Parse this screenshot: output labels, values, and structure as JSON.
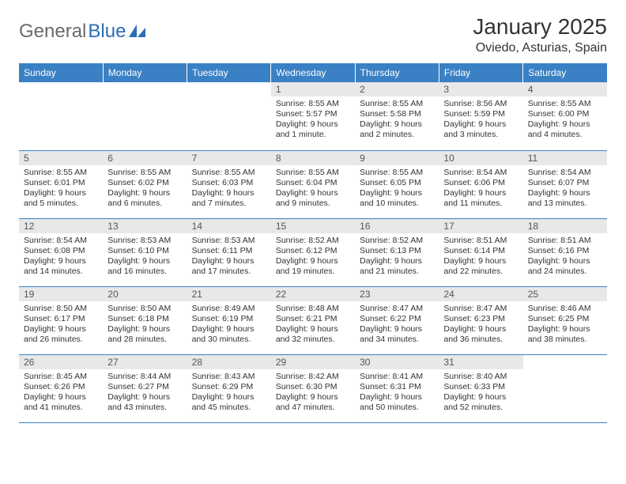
{
  "brand": {
    "name_a": "General",
    "name_b": "Blue"
  },
  "title": "January 2025",
  "subtitle": "Oviedo, Asturias, Spain",
  "colors": {
    "header_bg": "#3a80c4",
    "header_text": "#ffffff",
    "daynum_bg": "#e8e8e8",
    "daynum_text": "#555555",
    "body_text": "#333333",
    "rule": "#3a80c4",
    "logo_gray": "#6b6b6b",
    "logo_blue": "#2a6db5",
    "background": "#ffffff"
  },
  "weekdays": [
    "Sunday",
    "Monday",
    "Tuesday",
    "Wednesday",
    "Thursday",
    "Friday",
    "Saturday"
  ],
  "grid": [
    [
      null,
      null,
      null,
      {
        "n": "1",
        "sr": "Sunrise: 8:55 AM",
        "ss": "Sunset: 5:57 PM",
        "dl1": "Daylight: 9 hours",
        "dl2": "and 1 minute."
      },
      {
        "n": "2",
        "sr": "Sunrise: 8:55 AM",
        "ss": "Sunset: 5:58 PM",
        "dl1": "Daylight: 9 hours",
        "dl2": "and 2 minutes."
      },
      {
        "n": "3",
        "sr": "Sunrise: 8:56 AM",
        "ss": "Sunset: 5:59 PM",
        "dl1": "Daylight: 9 hours",
        "dl2": "and 3 minutes."
      },
      {
        "n": "4",
        "sr": "Sunrise: 8:55 AM",
        "ss": "Sunset: 6:00 PM",
        "dl1": "Daylight: 9 hours",
        "dl2": "and 4 minutes."
      }
    ],
    [
      {
        "n": "5",
        "sr": "Sunrise: 8:55 AM",
        "ss": "Sunset: 6:01 PM",
        "dl1": "Daylight: 9 hours",
        "dl2": "and 5 minutes."
      },
      {
        "n": "6",
        "sr": "Sunrise: 8:55 AM",
        "ss": "Sunset: 6:02 PM",
        "dl1": "Daylight: 9 hours",
        "dl2": "and 6 minutes."
      },
      {
        "n": "7",
        "sr": "Sunrise: 8:55 AM",
        "ss": "Sunset: 6:03 PM",
        "dl1": "Daylight: 9 hours",
        "dl2": "and 7 minutes."
      },
      {
        "n": "8",
        "sr": "Sunrise: 8:55 AM",
        "ss": "Sunset: 6:04 PM",
        "dl1": "Daylight: 9 hours",
        "dl2": "and 9 minutes."
      },
      {
        "n": "9",
        "sr": "Sunrise: 8:55 AM",
        "ss": "Sunset: 6:05 PM",
        "dl1": "Daylight: 9 hours",
        "dl2": "and 10 minutes."
      },
      {
        "n": "10",
        "sr": "Sunrise: 8:54 AM",
        "ss": "Sunset: 6:06 PM",
        "dl1": "Daylight: 9 hours",
        "dl2": "and 11 minutes."
      },
      {
        "n": "11",
        "sr": "Sunrise: 8:54 AM",
        "ss": "Sunset: 6:07 PM",
        "dl1": "Daylight: 9 hours",
        "dl2": "and 13 minutes."
      }
    ],
    [
      {
        "n": "12",
        "sr": "Sunrise: 8:54 AM",
        "ss": "Sunset: 6:08 PM",
        "dl1": "Daylight: 9 hours",
        "dl2": "and 14 minutes."
      },
      {
        "n": "13",
        "sr": "Sunrise: 8:53 AM",
        "ss": "Sunset: 6:10 PM",
        "dl1": "Daylight: 9 hours",
        "dl2": "and 16 minutes."
      },
      {
        "n": "14",
        "sr": "Sunrise: 8:53 AM",
        "ss": "Sunset: 6:11 PM",
        "dl1": "Daylight: 9 hours",
        "dl2": "and 17 minutes."
      },
      {
        "n": "15",
        "sr": "Sunrise: 8:52 AM",
        "ss": "Sunset: 6:12 PM",
        "dl1": "Daylight: 9 hours",
        "dl2": "and 19 minutes."
      },
      {
        "n": "16",
        "sr": "Sunrise: 8:52 AM",
        "ss": "Sunset: 6:13 PM",
        "dl1": "Daylight: 9 hours",
        "dl2": "and 21 minutes."
      },
      {
        "n": "17",
        "sr": "Sunrise: 8:51 AM",
        "ss": "Sunset: 6:14 PM",
        "dl1": "Daylight: 9 hours",
        "dl2": "and 22 minutes."
      },
      {
        "n": "18",
        "sr": "Sunrise: 8:51 AM",
        "ss": "Sunset: 6:16 PM",
        "dl1": "Daylight: 9 hours",
        "dl2": "and 24 minutes."
      }
    ],
    [
      {
        "n": "19",
        "sr": "Sunrise: 8:50 AM",
        "ss": "Sunset: 6:17 PM",
        "dl1": "Daylight: 9 hours",
        "dl2": "and 26 minutes."
      },
      {
        "n": "20",
        "sr": "Sunrise: 8:50 AM",
        "ss": "Sunset: 6:18 PM",
        "dl1": "Daylight: 9 hours",
        "dl2": "and 28 minutes."
      },
      {
        "n": "21",
        "sr": "Sunrise: 8:49 AM",
        "ss": "Sunset: 6:19 PM",
        "dl1": "Daylight: 9 hours",
        "dl2": "and 30 minutes."
      },
      {
        "n": "22",
        "sr": "Sunrise: 8:48 AM",
        "ss": "Sunset: 6:21 PM",
        "dl1": "Daylight: 9 hours",
        "dl2": "and 32 minutes."
      },
      {
        "n": "23",
        "sr": "Sunrise: 8:47 AM",
        "ss": "Sunset: 6:22 PM",
        "dl1": "Daylight: 9 hours",
        "dl2": "and 34 minutes."
      },
      {
        "n": "24",
        "sr": "Sunrise: 8:47 AM",
        "ss": "Sunset: 6:23 PM",
        "dl1": "Daylight: 9 hours",
        "dl2": "and 36 minutes."
      },
      {
        "n": "25",
        "sr": "Sunrise: 8:46 AM",
        "ss": "Sunset: 6:25 PM",
        "dl1": "Daylight: 9 hours",
        "dl2": "and 38 minutes."
      }
    ],
    [
      {
        "n": "26",
        "sr": "Sunrise: 8:45 AM",
        "ss": "Sunset: 6:26 PM",
        "dl1": "Daylight: 9 hours",
        "dl2": "and 41 minutes."
      },
      {
        "n": "27",
        "sr": "Sunrise: 8:44 AM",
        "ss": "Sunset: 6:27 PM",
        "dl1": "Daylight: 9 hours",
        "dl2": "and 43 minutes."
      },
      {
        "n": "28",
        "sr": "Sunrise: 8:43 AM",
        "ss": "Sunset: 6:29 PM",
        "dl1": "Daylight: 9 hours",
        "dl2": "and 45 minutes."
      },
      {
        "n": "29",
        "sr": "Sunrise: 8:42 AM",
        "ss": "Sunset: 6:30 PM",
        "dl1": "Daylight: 9 hours",
        "dl2": "and 47 minutes."
      },
      {
        "n": "30",
        "sr": "Sunrise: 8:41 AM",
        "ss": "Sunset: 6:31 PM",
        "dl1": "Daylight: 9 hours",
        "dl2": "and 50 minutes."
      },
      {
        "n": "31",
        "sr": "Sunrise: 8:40 AM",
        "ss": "Sunset: 6:33 PM",
        "dl1": "Daylight: 9 hours",
        "dl2": "and 52 minutes."
      },
      null
    ]
  ]
}
